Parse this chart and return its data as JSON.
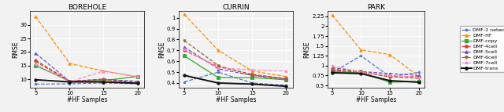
{
  "x": [
    5,
    10,
    15,
    20
  ],
  "borehole": {
    "title": "BOREHOLE",
    "ylabel": "RMSE",
    "xlabel": "#HF Samples",
    "ylim": [
      7,
      35
    ],
    "yticks": [
      10,
      15,
      20,
      25,
      30
    ],
    "series": {
      "DMF-2 network": [
        8.2,
        8.3,
        8.6,
        8.3
      ],
      "DMF-HF": [
        33.0,
        15.8,
        13.0,
        10.8
      ],
      "DMF-copy": [
        15.0,
        9.3,
        9.5,
        11.0
      ],
      "DMF-4cell": [
        17.0,
        9.3,
        10.0,
        8.8
      ],
      "DMF-5cell": [
        19.5,
        9.2,
        10.0,
        9.2
      ],
      "DMF-6cell": [
        16.5,
        9.0,
        9.8,
        8.5
      ],
      "DMF-7cell": [
        15.5,
        9.0,
        13.0,
        11.0
      ],
      "DMF-trans": [
        9.8,
        9.0,
        9.0,
        8.5
      ]
    }
  },
  "currin": {
    "title": "CURRIN",
    "ylabel": "RMSE",
    "xlabel": "#HF Samples",
    "ylim": [
      0.36,
      1.06
    ],
    "yticks": [
      0.4,
      0.5,
      0.6,
      0.7,
      0.8,
      0.9,
      1.0
    ],
    "series": {
      "DMF-2 network": [
        0.41,
        0.5,
        0.4,
        0.38
      ],
      "DMF-HF": [
        1.03,
        0.7,
        0.51,
        0.46
      ],
      "DMF-copy": [
        0.65,
        0.45,
        0.45,
        0.43
      ],
      "DMF-4cell": [
        0.7,
        0.55,
        0.48,
        0.44
      ],
      "DMF-5cell": [
        0.73,
        0.53,
        0.47,
        0.44
      ],
      "DMF-6cell": [
        0.79,
        0.56,
        0.47,
        0.43
      ],
      "DMF-7cell": [
        0.71,
        0.54,
        0.52,
        0.51
      ],
      "DMF-trans": [
        0.47,
        0.4,
        0.39,
        0.37
      ]
    }
  },
  "park": {
    "title": "PARK",
    "ylabel": "RMSE",
    "xlabel": "#HF Samples",
    "ylim": [
      0.45,
      2.38
    ],
    "yticks": [
      0.5,
      0.75,
      1.0,
      1.25,
      1.5,
      1.75,
      2.0,
      2.25
    ],
    "series": {
      "DMF-2 network": [
        0.82,
        1.25,
        0.72,
        0.83
      ],
      "DMF-HF": [
        2.28,
        1.4,
        1.28,
        0.73
      ],
      "DMF-copy": [
        0.85,
        0.82,
        0.58,
        0.6
      ],
      "DMF-4cell": [
        0.88,
        0.83,
        0.72,
        0.72
      ],
      "DMF-5cell": [
        0.95,
        0.85,
        0.8,
        0.75
      ],
      "DMF-6cell": [
        0.9,
        0.85,
        0.72,
        0.68
      ],
      "DMF-7cell": [
        1.0,
        0.83,
        0.75,
        0.7
      ],
      "DMF-trans": [
        0.82,
        0.8,
        0.62,
        0.58
      ]
    }
  },
  "styles": {
    "DMF-2 network": {
      "color": "#5577CC",
      "linestyle": "--",
      "marker": "*",
      "lw": 0.9
    },
    "DMF-HF": {
      "color": "#FF8C00",
      "linestyle": "--",
      "marker": "^",
      "lw": 0.9
    },
    "DMF-copy": {
      "color": "#33AA33",
      "linestyle": "-",
      "marker": "s",
      "lw": 0.9
    },
    "DMF-4cell": {
      "color": "#EE3333",
      "linestyle": "--",
      "marker": "o",
      "lw": 0.9
    },
    "DMF-5cell": {
      "color": "#7755BB",
      "linestyle": "--",
      "marker": "^",
      "lw": 0.9
    },
    "DMF-6cell": {
      "color": "#996633",
      "linestyle": "--",
      "marker": "v",
      "lw": 0.9
    },
    "DMF-7cell": {
      "color": "#FF88CC",
      "linestyle": "--",
      "marker": "*",
      "lw": 0.9
    },
    "DMF-trans": {
      "color": "#111111",
      "linestyle": "-",
      "marker": "o",
      "lw": 1.4
    }
  },
  "legend_order": [
    "DMF-2 network",
    "DMF-HF",
    "DMF-copy",
    "DMF-4cell",
    "DMF-5cell",
    "DMF-6cell",
    "DMF-7cell",
    "DMF-trans"
  ],
  "bg_color": "#f2f2f2"
}
